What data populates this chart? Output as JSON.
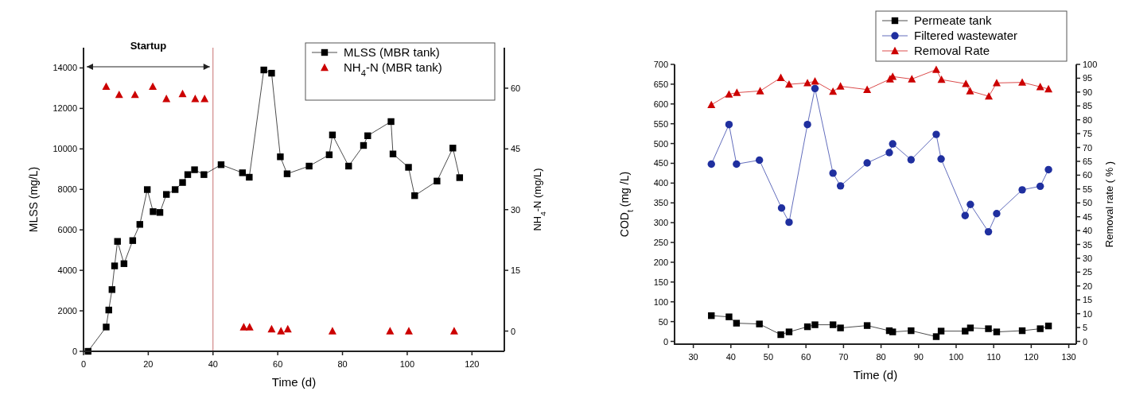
{
  "chart_data": [
    {
      "type": "line",
      "xlabel": "Time (d)",
      "ylabel": "MLSS (mg/L)",
      "y2label": "NH$_{4}$-N (mg/L)",
      "xlim": [
        0,
        130
      ],
      "xticks": [
        0,
        20,
        40,
        60,
        80,
        100,
        120
      ],
      "ylim": [
        0,
        15000
      ],
      "yticks": [
        0,
        2000,
        4000,
        6000,
        8000,
        10000,
        12000,
        14000
      ],
      "y2lim": [
        -5,
        70
      ],
      "y2ticks": [
        0,
        15,
        30,
        45,
        60
      ],
      "legend": "top right",
      "grid": false,
      "ref_lines": [
        {
          "axis": "x",
          "value": 40,
          "color": "#c87070"
        }
      ],
      "annotations": [
        "Startup"
      ],
      "series": [
        {
          "name": "MLSS (MBR tank)",
          "type": "line",
          "marker": "square",
          "color": "#000000",
          "x": [
            1.4,
            7,
            7.8,
            8.8,
            9.6,
            10.5,
            12.5,
            15.2,
            17.4,
            19.7,
            21.5,
            23.6,
            25.6,
            28.3,
            30.6,
            32.2,
            34.3,
            37.2,
            42.5,
            49.1,
            51.2,
            55.7,
            58.1,
            60.8,
            62.9,
            69.7,
            75.9,
            76.9,
            81.9,
            86.5,
            87.8,
            95,
            95.6,
            100.4,
            102.3,
            109.2,
            114.1,
            116.2
          ],
          "values": [
            0,
            1200,
            2040,
            3050,
            4220,
            5430,
            4330,
            5470,
            6270,
            7990,
            6900,
            6860,
            7750,
            7990,
            8340,
            8730,
            8970,
            8730,
            9220,
            8820,
            8600,
            13900,
            13740,
            9610,
            8770,
            9150,
            9710,
            10690,
            9150,
            10170,
            10650,
            11350,
            9750,
            9090,
            7690,
            8410,
            10040,
            8580
          ]
        },
        {
          "name": "NH$_{4}$-N (MBR tank)",
          "type": "scatter",
          "marker": "triangle",
          "axis": "y2",
          "color": "#cc0000",
          "x": [
            7,
            11,
            15.9,
            21.4,
            25.6,
            30.6,
            34.5,
            37.4,
            49.5,
            51.3,
            58.1,
            61,
            63.1,
            76.9,
            94.7,
            100.5,
            114.5
          ],
          "values": [
            60.4,
            58.4,
            58.4,
            60.4,
            57.4,
            58.6,
            57.4,
            57.4,
            1,
            1,
            0.5,
            0,
            0.5,
            0,
            0,
            0,
            0
          ]
        }
      ]
    },
    {
      "type": "line",
      "xlabel": "Time (d)",
      "ylabel": "COD$_{t}$ (mg /L)",
      "y2label": "Removal rate ( % )",
      "xlim": [
        25,
        132
      ],
      "xticks": [
        30,
        40,
        50,
        60,
        70,
        80,
        90,
        100,
        110,
        120,
        130
      ],
      "ylim": [
        -7,
        700
      ],
      "yticks": [
        0,
        50,
        100,
        150,
        200,
        250,
        300,
        350,
        400,
        450,
        500,
        550,
        600,
        650,
        700
      ],
      "y2lim": [
        -1,
        100
      ],
      "y2ticks": [
        0,
        5,
        10,
        15,
        20,
        25,
        30,
        35,
        40,
        45,
        50,
        55,
        60,
        65,
        70,
        75,
        80,
        85,
        90,
        95,
        100
      ],
      "legend": "top right",
      "grid": false,
      "series": [
        {
          "name": "Permeate tank",
          "type": "line",
          "marker": "square",
          "color": "#000000",
          "x": [
            34.8,
            39.5,
            41.5,
            47.6,
            53.3,
            55.5,
            60.4,
            62.4,
            67.2,
            69.2,
            76.3,
            82.2,
            83.1,
            88,
            94.7,
            96,
            102.4,
            103.8,
            108.6,
            110.8,
            117.6,
            122.4,
            124.6
          ],
          "values": [
            65,
            62,
            46,
            44,
            17,
            24,
            37,
            42,
            42,
            34,
            40,
            27,
            24,
            27,
            12,
            26,
            26,
            34,
            32,
            24,
            27,
            32,
            39
          ]
        },
        {
          "name": "Filtered wastewater",
          "type": "line",
          "marker": "circle",
          "color": "#1f2f9f",
          "x": [
            34.8,
            39.5,
            41.5,
            47.6,
            53.5,
            55.5,
            60.4,
            62.4,
            67.2,
            69.2,
            76.3,
            82.2,
            83.1,
            88,
            94.7,
            96,
            102.4,
            103.8,
            108.6,
            110.8,
            117.6,
            122.4,
            124.6
          ],
          "values": [
            448,
            548,
            448,
            458,
            337,
            301,
            548,
            639,
            425,
            393,
            451,
            477,
            499,
            459,
            523,
            461,
            318,
            346,
            277,
            323,
            383,
            392,
            434
          ]
        },
        {
          "name": "Removal Rate",
          "type": "line",
          "marker": "triangle",
          "axis": "y2",
          "color": "#cc0000",
          "x": [
            34.8,
            39.5,
            41.6,
            47.8,
            53.3,
            55.5,
            60.4,
            62.4,
            67.2,
            69.2,
            76.3,
            82.4,
            83.1,
            88.2,
            94.7,
            96.1,
            102.6,
            103.7,
            108.7,
            110.8,
            117.6,
            122.4,
            124.6
          ],
          "values": [
            85.4,
            89.2,
            89.8,
            90.4,
            95.2,
            92.8,
            93.3,
            93.9,
            90.2,
            92.1,
            90.9,
            94.7,
            95.6,
            94.7,
            98.1,
            94.5,
            93,
            90.4,
            88.5,
            93.3,
            93.5,
            91.9,
            91.1
          ]
        }
      ]
    }
  ]
}
